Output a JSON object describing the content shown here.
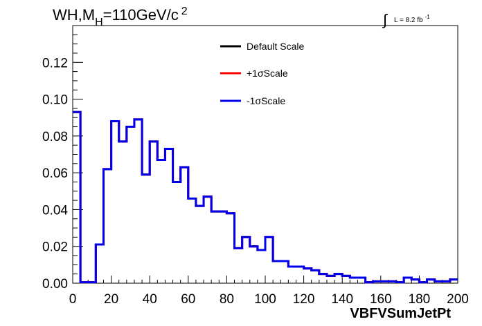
{
  "chart_data": {
    "type": "line",
    "title": "WH,M",
    "title_subscript": "H",
    "title_rest": "=110GeV/c",
    "title_superscript": "2",
    "luminosity_symbol": "∫",
    "luminosity_text": "L = 8.2 fb",
    "luminosity_exponent": "-1",
    "xlabel": "VBFVSumJetPt",
    "ylabel": "",
    "xlim": [
      0,
      200
    ],
    "ylim": [
      0,
      0.14
    ],
    "x_ticks": [
      "0",
      "20",
      "40",
      "60",
      "80",
      "100",
      "120",
      "140",
      "160",
      "180",
      "200"
    ],
    "y_ticks": [
      "0.00",
      "0.02",
      "0.04",
      "0.06",
      "0.08",
      "0.10",
      "0.12"
    ],
    "grid": false,
    "legend_position": "top-center",
    "bin_edges": [
      0,
      4,
      8,
      12,
      16,
      20,
      24,
      28,
      32,
      36,
      40,
      44,
      48,
      52,
      56,
      60,
      64,
      68,
      72,
      76,
      80,
      84,
      88,
      92,
      96,
      100,
      104,
      108,
      112,
      116,
      120,
      124,
      128,
      132,
      136,
      140,
      144,
      148,
      152,
      156,
      160,
      164,
      168,
      172,
      176,
      180,
      184,
      188,
      192,
      196,
      200
    ],
    "series": [
      {
        "name": "Default Scale",
        "color": "#000000",
        "values": [
          0.093,
          0.0005,
          0.0005,
          0.021,
          0.062,
          0.088,
          0.077,
          0.085,
          0.089,
          0.059,
          0.077,
          0.067,
          0.073,
          0.055,
          0.063,
          0.046,
          0.042,
          0.047,
          0.039,
          0.039,
          0.038,
          0.019,
          0.025,
          0.02,
          0.018,
          0.025,
          0.012,
          0.012,
          0.009,
          0.009,
          0.008,
          0.007,
          0.005,
          0.004,
          0.005,
          0.004,
          0.003,
          0.003,
          0.0005,
          0.001,
          0.001,
          0.001,
          0.0005,
          0.003,
          0.002,
          0.0005,
          0.002,
          0.001,
          0.001,
          0.002
        ]
      },
      {
        "name": "+1σScale",
        "color": "#ff0000",
        "values": [
          0.093,
          0.0005,
          0.0005,
          0.021,
          0.062,
          0.088,
          0.077,
          0.085,
          0.089,
          0.059,
          0.077,
          0.067,
          0.073,
          0.055,
          0.063,
          0.046,
          0.042,
          0.047,
          0.039,
          0.039,
          0.038,
          0.019,
          0.025,
          0.02,
          0.018,
          0.025,
          0.012,
          0.012,
          0.009,
          0.009,
          0.008,
          0.007,
          0.005,
          0.004,
          0.005,
          0.004,
          0.003,
          0.003,
          0.0005,
          0.001,
          0.001,
          0.001,
          0.0005,
          0.003,
          0.002,
          0.0005,
          0.002,
          0.001,
          0.001,
          0.002
        ]
      },
      {
        "name": "-1σScale",
        "color": "#0000ee",
        "values": [
          0.093,
          0.0005,
          0.0005,
          0.021,
          0.062,
          0.088,
          0.077,
          0.085,
          0.089,
          0.059,
          0.077,
          0.067,
          0.073,
          0.055,
          0.063,
          0.046,
          0.042,
          0.047,
          0.039,
          0.039,
          0.038,
          0.019,
          0.025,
          0.02,
          0.018,
          0.025,
          0.012,
          0.012,
          0.009,
          0.009,
          0.008,
          0.007,
          0.005,
          0.004,
          0.005,
          0.004,
          0.003,
          0.003,
          0.0005,
          0.001,
          0.001,
          0.001,
          0.0005,
          0.003,
          0.002,
          0.0005,
          0.002,
          0.001,
          0.001,
          0.002
        ]
      }
    ]
  }
}
